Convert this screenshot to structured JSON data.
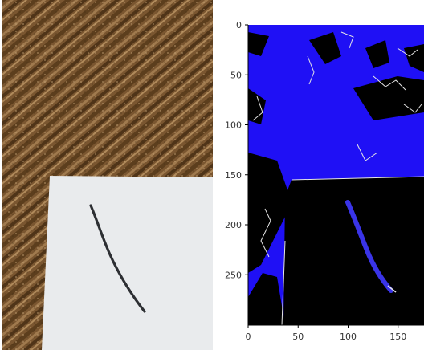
{
  "panels": {
    "left": {
      "kind": "photograph",
      "subject": "wood surface with paper and a pencil mark"
    },
    "right": {
      "kind": "segmentation-plot"
    }
  },
  "plot": {
    "x_ticks": [
      "0",
      "50",
      "100",
      "150"
    ],
    "y_ticks": [
      "0",
      "50",
      "100",
      "150",
      "200",
      "250"
    ],
    "colors": {
      "background_mask": "#1f10f5",
      "mark": "#3a34e8",
      "edges": "#e6e6e6",
      "paper": "#000000"
    }
  }
}
